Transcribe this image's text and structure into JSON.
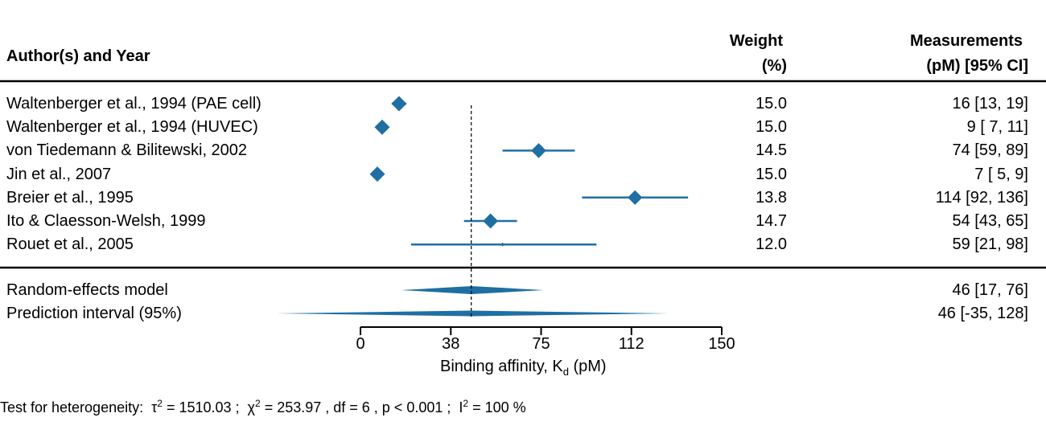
{
  "chart_data": {
    "type": "forest",
    "headers": {
      "study": "Author(s) and Year",
      "weight_line1": "Weight",
      "weight_line2": "(%)",
      "meas_line1": "Measurements",
      "meas_line2": "(pM) [95% CI]"
    },
    "studies": [
      {
        "label": "Waltenberger et al., 1994 (PAE cell)",
        "weight": "15.0",
        "ci_text": "16 [13,  19]",
        "est": 16,
        "lo": 13,
        "hi": 19
      },
      {
        "label": "Waltenberger et al., 1994 (HUVEC)",
        "weight": "15.0",
        "ci_text": "9 [ 7,  11]",
        "est": 9,
        "lo": 7,
        "hi": 11
      },
      {
        "label": "von Tiedemann & Bilitewski, 2002",
        "weight": "14.5",
        "ci_text": "74 [59,  89]",
        "est": 74,
        "lo": 59,
        "hi": 89
      },
      {
        "label": "Jin et al., 2007",
        "weight": "15.0",
        "ci_text": "7 [ 5,   9]",
        "est": 7,
        "lo": 5,
        "hi": 9
      },
      {
        "label": "Breier et al., 1995",
        "weight": "13.8",
        "ci_text": "114 [92, 136]",
        "est": 114,
        "lo": 92,
        "hi": 136
      },
      {
        "label": "Ito & Claesson-Welsh, 1999",
        "weight": "14.7",
        "ci_text": "54 [43,  65]",
        "est": 54,
        "lo": 43,
        "hi": 65
      },
      {
        "label": "Rouet et al., 2005",
        "weight": "12.0",
        "ci_text": "59 [21,  98]",
        "est": 59,
        "lo": 21,
        "hi": 98
      }
    ],
    "summary": [
      {
        "label": "Random-effects model",
        "ci_text": "46 [17,  76]",
        "est": 46,
        "lo": 17,
        "hi": 76
      },
      {
        "label": "Prediction interval (95%)",
        "ci_text": "46 [-35, 128]",
        "est": 46,
        "lo": -35,
        "hi": 128
      }
    ],
    "x_ticks": [
      "0",
      "38",
      "75",
      "112",
      "150"
    ],
    "x_tick_values": [
      0,
      37.5,
      75,
      112.5,
      150
    ],
    "x_range": [
      0,
      150
    ],
    "xlabel_main": "Binding affinity, K",
    "xlabel_sub": "d",
    "xlabel_tail": " (pM)",
    "reference_value": 46,
    "colors": {
      "marker": "#1f6fa3",
      "text": "#000000"
    },
    "heterogeneity": {
      "prefix": "Test for heterogeneity:",
      "tau2": "= 1510.03 ;",
      "chi2": "= 253.97 , df = 6 ,  p < 0.001 ;",
      "i2": "= 100 %"
    }
  }
}
